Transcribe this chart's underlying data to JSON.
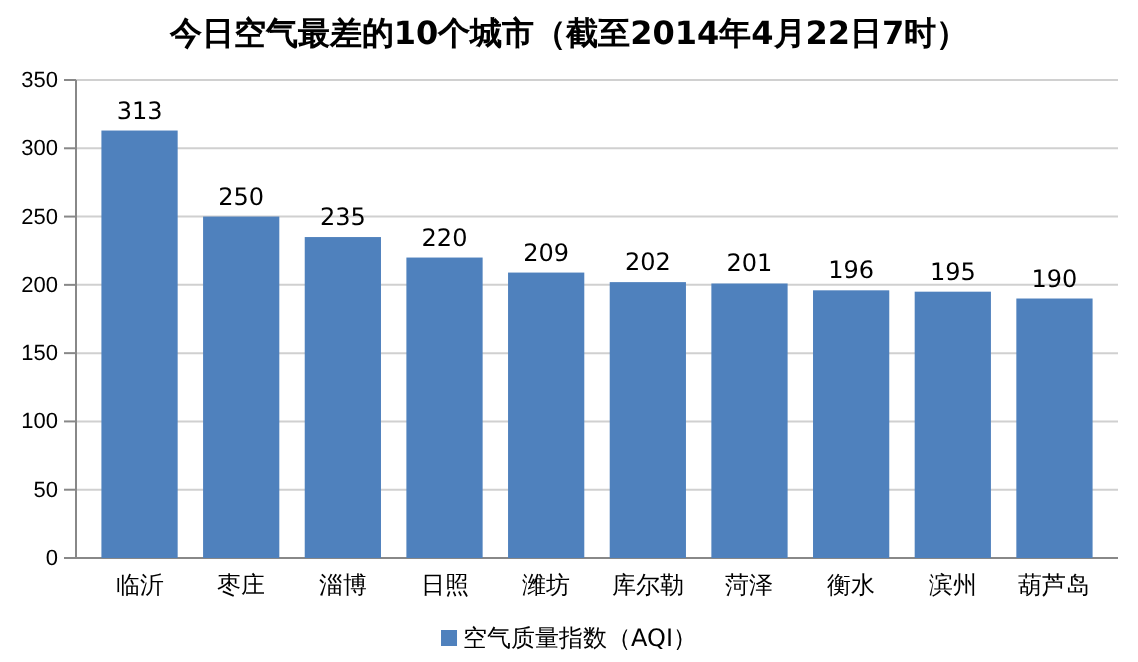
{
  "chart_data": {
    "type": "bar",
    "title": "今日空气最差的10个城市（截至2014年4月22日7时）",
    "categories": [
      "临沂",
      "枣庄",
      "淄博",
      "日照",
      "潍坊",
      "库尔勒",
      "菏泽",
      "衡水",
      "滨州",
      "葫芦岛"
    ],
    "series": [
      {
        "name": "空气质量指数（AQI）",
        "color": "#4f81bd",
        "values": [
          313,
          250,
          235,
          220,
          209,
          202,
          201,
          196,
          195,
          190
        ]
      }
    ],
    "ylim": [
      0,
      350
    ],
    "yticks": [
      0,
      50,
      100,
      150,
      200,
      250,
      300,
      350
    ],
    "grid": "y",
    "legend": "bottom",
    "data_labels": true
  }
}
